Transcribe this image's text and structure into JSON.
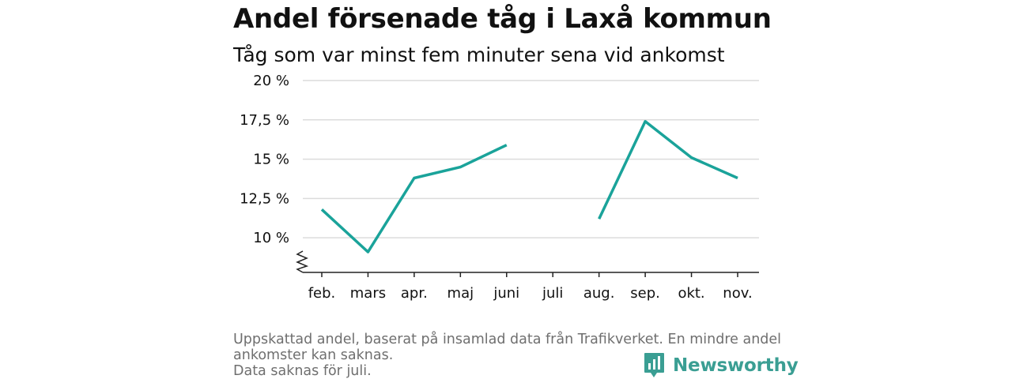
{
  "chart_data": {
    "type": "line",
    "title": "Andel försenade tåg i Laxå kommun",
    "subtitle": "Tåg som var minst fem minuter sena vid ankomst",
    "xlabel": "",
    "ylabel": "",
    "categories": [
      "feb.",
      "mars",
      "apr.",
      "maj",
      "juni",
      "juli",
      "aug.",
      "sep.",
      "okt.",
      "nov."
    ],
    "series": [
      {
        "values": [
          11.8,
          9.1,
          13.8,
          14.5,
          15.9,
          null,
          11.2,
          17.4,
          15.1,
          13.8
        ]
      }
    ],
    "ylim": [
      7.8,
      20
    ],
    "yticks": [
      10,
      12.5,
      15,
      17.5,
      20
    ],
    "ytick_labels": [
      "10 %",
      "12,5 %",
      "15 %",
      "17,5 %",
      "20 %"
    ],
    "axis_break": true,
    "grid": true,
    "line_color": "#1aa39a"
  },
  "footnote": {
    "lines": [
      "Uppskattad andel, baserat på insamlad data från Trafikverket. En mindre andel",
      "ankomster kan saknas.",
      "Data saknas för juli."
    ]
  },
  "brand": {
    "name": "Newsworthy",
    "icon": "newsworthy-logo-icon",
    "color": "#3a9e93"
  }
}
